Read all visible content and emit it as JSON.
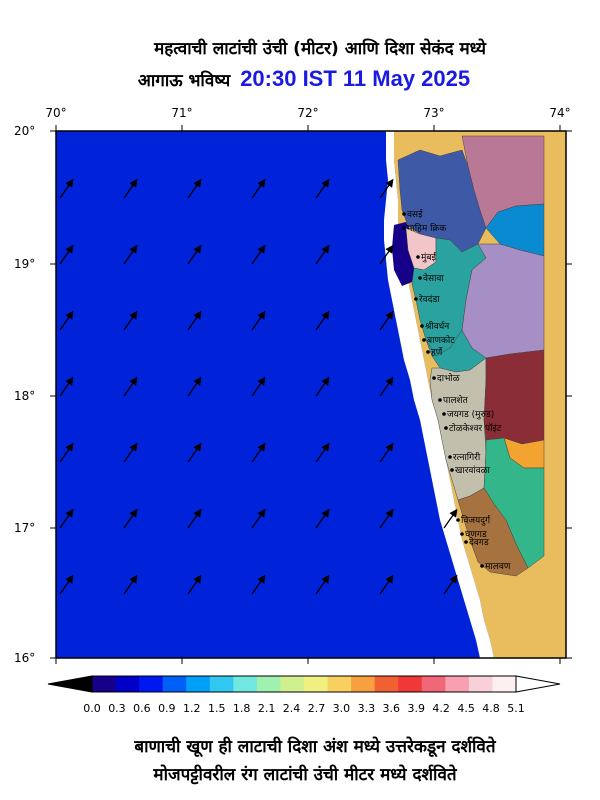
{
  "title": {
    "line1": "महत्वाची लाटांची उंची (मीटर) आणि दिशा सेकंद मध्ये",
    "line2_prefix": "आगाऊ भविष्य",
    "timestamp": "20:30 IST 11 May 2025"
  },
  "axes": {
    "lon_labels": [
      "70°",
      "71°",
      "72°",
      "73°",
      "74°"
    ],
    "lat_labels": [
      "20°",
      "19°",
      "18°",
      "17°",
      "16°"
    ]
  },
  "places": [
    {
      "name": "वसई"
    },
    {
      "name": "माहिम क्रिक"
    },
    {
      "name": "मुंबई"
    },
    {
      "name": "वेसावा"
    },
    {
      "name": "रेवदंडा"
    },
    {
      "name": "श्रीवर्धन"
    },
    {
      "name": "बाणकोट"
    },
    {
      "name": "हर्णे"
    },
    {
      "name": "दाभोळ"
    },
    {
      "name": "पालशेत"
    },
    {
      "name": "जयगड (मुरुड)"
    },
    {
      "name": "टोळकेश्वर पॉइंट"
    },
    {
      "name": "रत्नागिरी"
    },
    {
      "name": "खारवांवळा"
    },
    {
      "name": "विजयदुर्ग"
    },
    {
      "name": "घणगड"
    },
    {
      "name": "देवगड"
    },
    {
      "name": "मालवण"
    }
  ],
  "colorbar": {
    "ticks": [
      "0.0",
      "0.3",
      "0.6",
      "0.9",
      "1.2",
      "1.5",
      "1.8",
      "2.1",
      "2.4",
      "2.7",
      "3.0",
      "3.3",
      "3.6",
      "3.9",
      "4.2",
      "4.5",
      "4.8",
      "5.1"
    ],
    "colors": [
      "#16008a",
      "#0000c8",
      "#0018f0",
      "#0060f8",
      "#00a0f8",
      "#30c8f0",
      "#70e8e0",
      "#a0f0b0",
      "#d0f090",
      "#f0f080",
      "#f8d060",
      "#f8a040",
      "#f06030",
      "#f03838",
      "#f06878",
      "#f8a0b0",
      "#f8d0d8",
      "#fff0f0"
    ]
  },
  "footer": {
    "line1": "बाणाची खूण ही लाटाची दिशा अंश मध्ये उत्तरेकडून दर्शविते",
    "line2": "मोजपट्टीवरील रंग लाटांची उंची मीटर मध्ये दर्शविते"
  },
  "colors": {
    "sea": "#0022d8",
    "land": "#e9bd5e",
    "coast_white": "#ffffff",
    "timestamp": "#1a1ae0"
  }
}
